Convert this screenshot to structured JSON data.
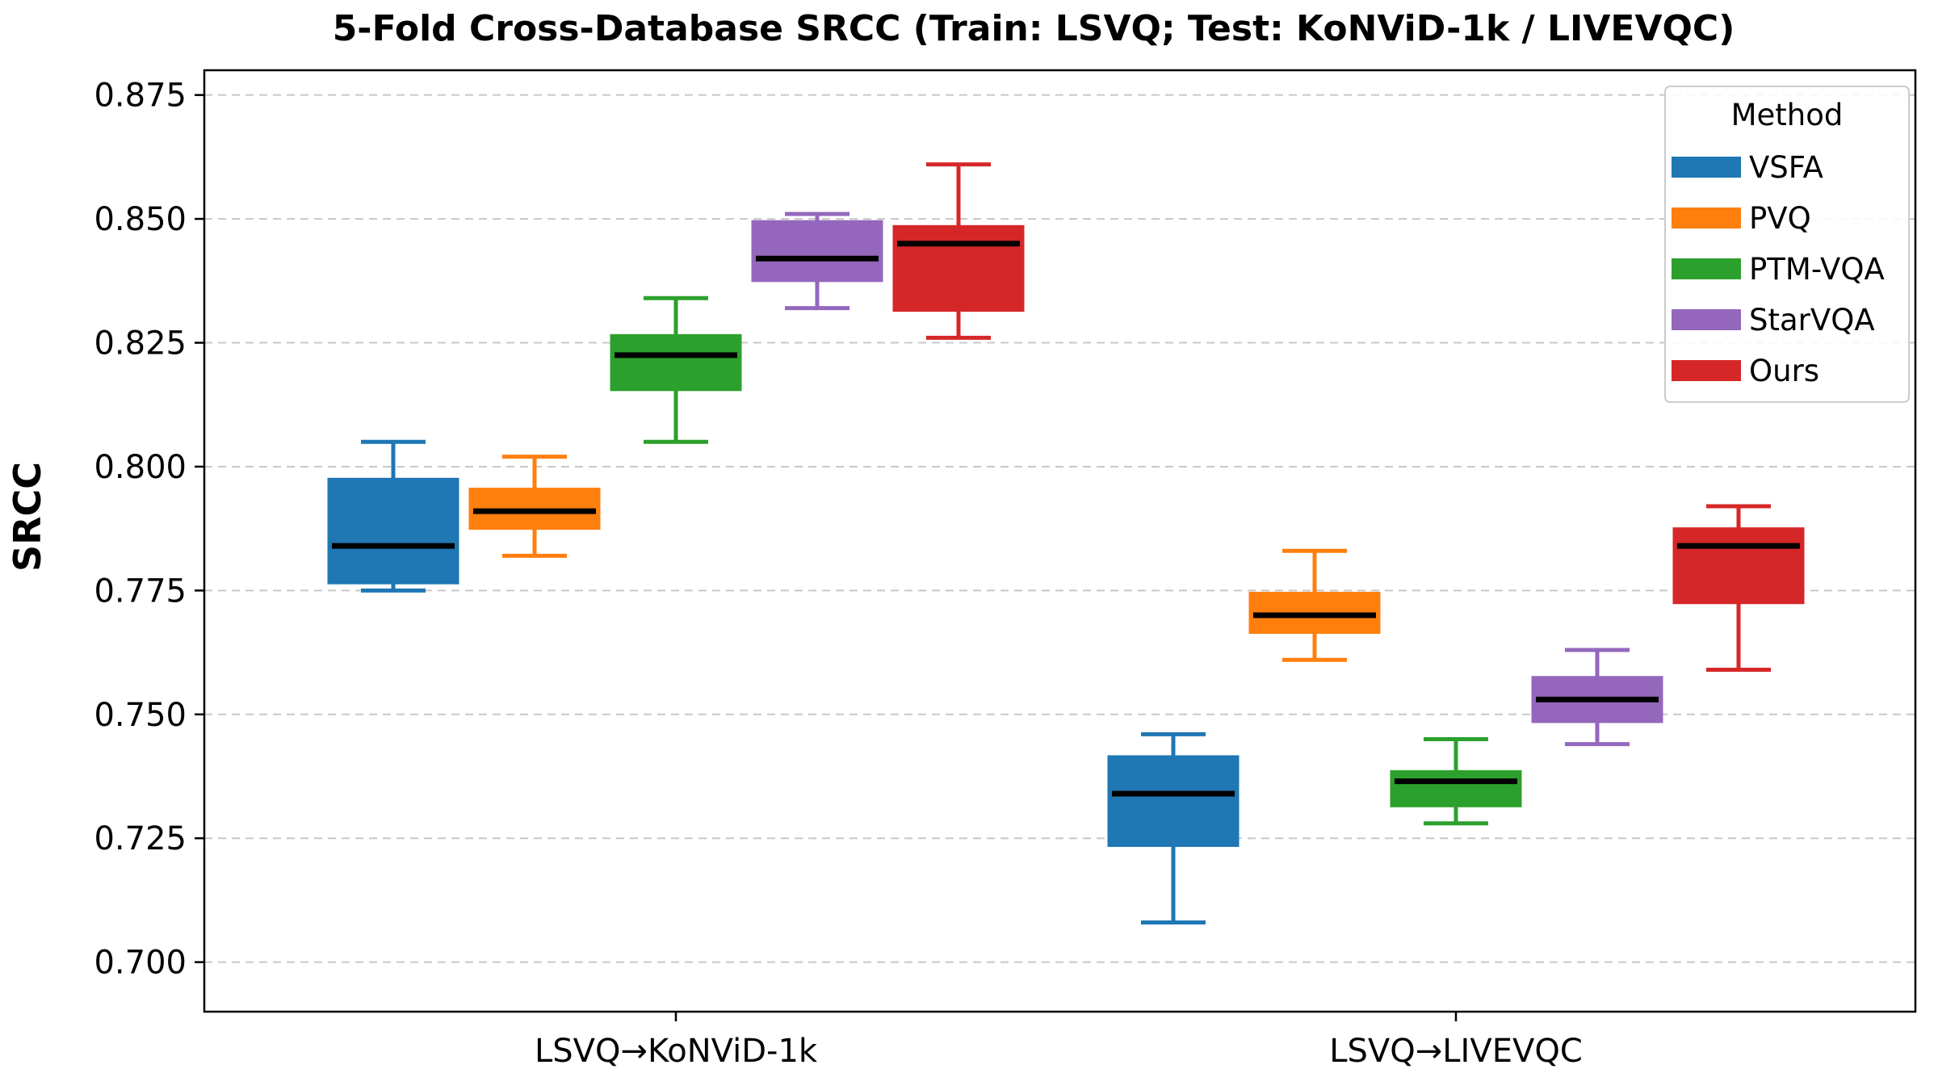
{
  "chart_data": {
    "type": "box",
    "title": "5-Fold Cross-Database SRCC (Train: LSVQ; Test: KoNViD-1k / LIVEVQC)",
    "xlabel": "",
    "ylabel": "SRCC",
    "ylim": [
      0.69,
      0.88
    ],
    "yticks": [
      "0.700",
      "0.725",
      "0.750",
      "0.775",
      "0.800",
      "0.825",
      "0.850",
      "0.875"
    ],
    "categories": [
      "LSVQ→KoNViD-1k",
      "LSVQ→LIVEVQC"
    ],
    "legend": {
      "title": "Method",
      "position": "top-right"
    },
    "grid": true,
    "series": [
      {
        "name": "VSFA",
        "color": "#1f77b4",
        "boxes": [
          {
            "whislo": 0.775,
            "q1": 0.7765,
            "med": 0.784,
            "q3": 0.7975,
            "whishi": 0.805
          },
          {
            "whislo": 0.708,
            "q1": 0.7235,
            "med": 0.734,
            "q3": 0.7415,
            "whishi": 0.746
          }
        ]
      },
      {
        "name": "PVQ",
        "color": "#ff7f0e",
        "boxes": [
          {
            "whislo": 0.782,
            "q1": 0.7875,
            "med": 0.791,
            "q3": 0.7955,
            "whishi": 0.802
          },
          {
            "whislo": 0.761,
            "q1": 0.7665,
            "med": 0.77,
            "q3": 0.7745,
            "whishi": 0.783
          }
        ]
      },
      {
        "name": "PTM-VQA",
        "color": "#2ca02c",
        "boxes": [
          {
            "whislo": 0.805,
            "q1": 0.8155,
            "med": 0.8225,
            "q3": 0.8265,
            "whishi": 0.834
          },
          {
            "whislo": 0.728,
            "q1": 0.7315,
            "med": 0.7365,
            "q3": 0.7385,
            "whishi": 0.745
          }
        ]
      },
      {
        "name": "StarVQA",
        "color": "#9467bd",
        "boxes": [
          {
            "whislo": 0.832,
            "q1": 0.8375,
            "med": 0.842,
            "q3": 0.8495,
            "whishi": 0.851
          },
          {
            "whislo": 0.744,
            "q1": 0.7485,
            "med": 0.753,
            "q3": 0.7575,
            "whishi": 0.763
          }
        ]
      },
      {
        "name": "Ours",
        "color": "#d62728",
        "boxes": [
          {
            "whislo": 0.826,
            "q1": 0.8315,
            "med": 0.845,
            "q3": 0.8485,
            "whishi": 0.861
          },
          {
            "whislo": 0.759,
            "q1": 0.7725,
            "med": 0.784,
            "q3": 0.7875,
            "whishi": 0.792
          }
        ]
      }
    ]
  }
}
